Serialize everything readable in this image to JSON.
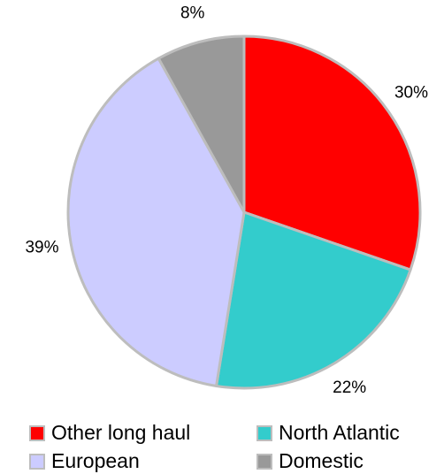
{
  "chart_data": {
    "type": "pie",
    "categories": [
      "Other long haul",
      "North Atlantic",
      "European",
      "Domestic"
    ],
    "values": [
      30,
      22,
      39,
      8
    ],
    "labels": [
      "30%",
      "22%",
      "39%",
      "8%"
    ],
    "colors": [
      "#ff0000",
      "#33cccc",
      "#ccccff",
      "#999999"
    ],
    "start_angle": "12 o'clock",
    "direction": "clockwise",
    "legend_position": "bottom"
  },
  "legend": [
    {
      "label": "Other long haul",
      "color": "#ff0000"
    },
    {
      "label": "North Atlantic",
      "color": "#33cccc"
    },
    {
      "label": "European",
      "color": "#ccccff"
    },
    {
      "label": "Domestic",
      "color": "#999999"
    }
  ]
}
